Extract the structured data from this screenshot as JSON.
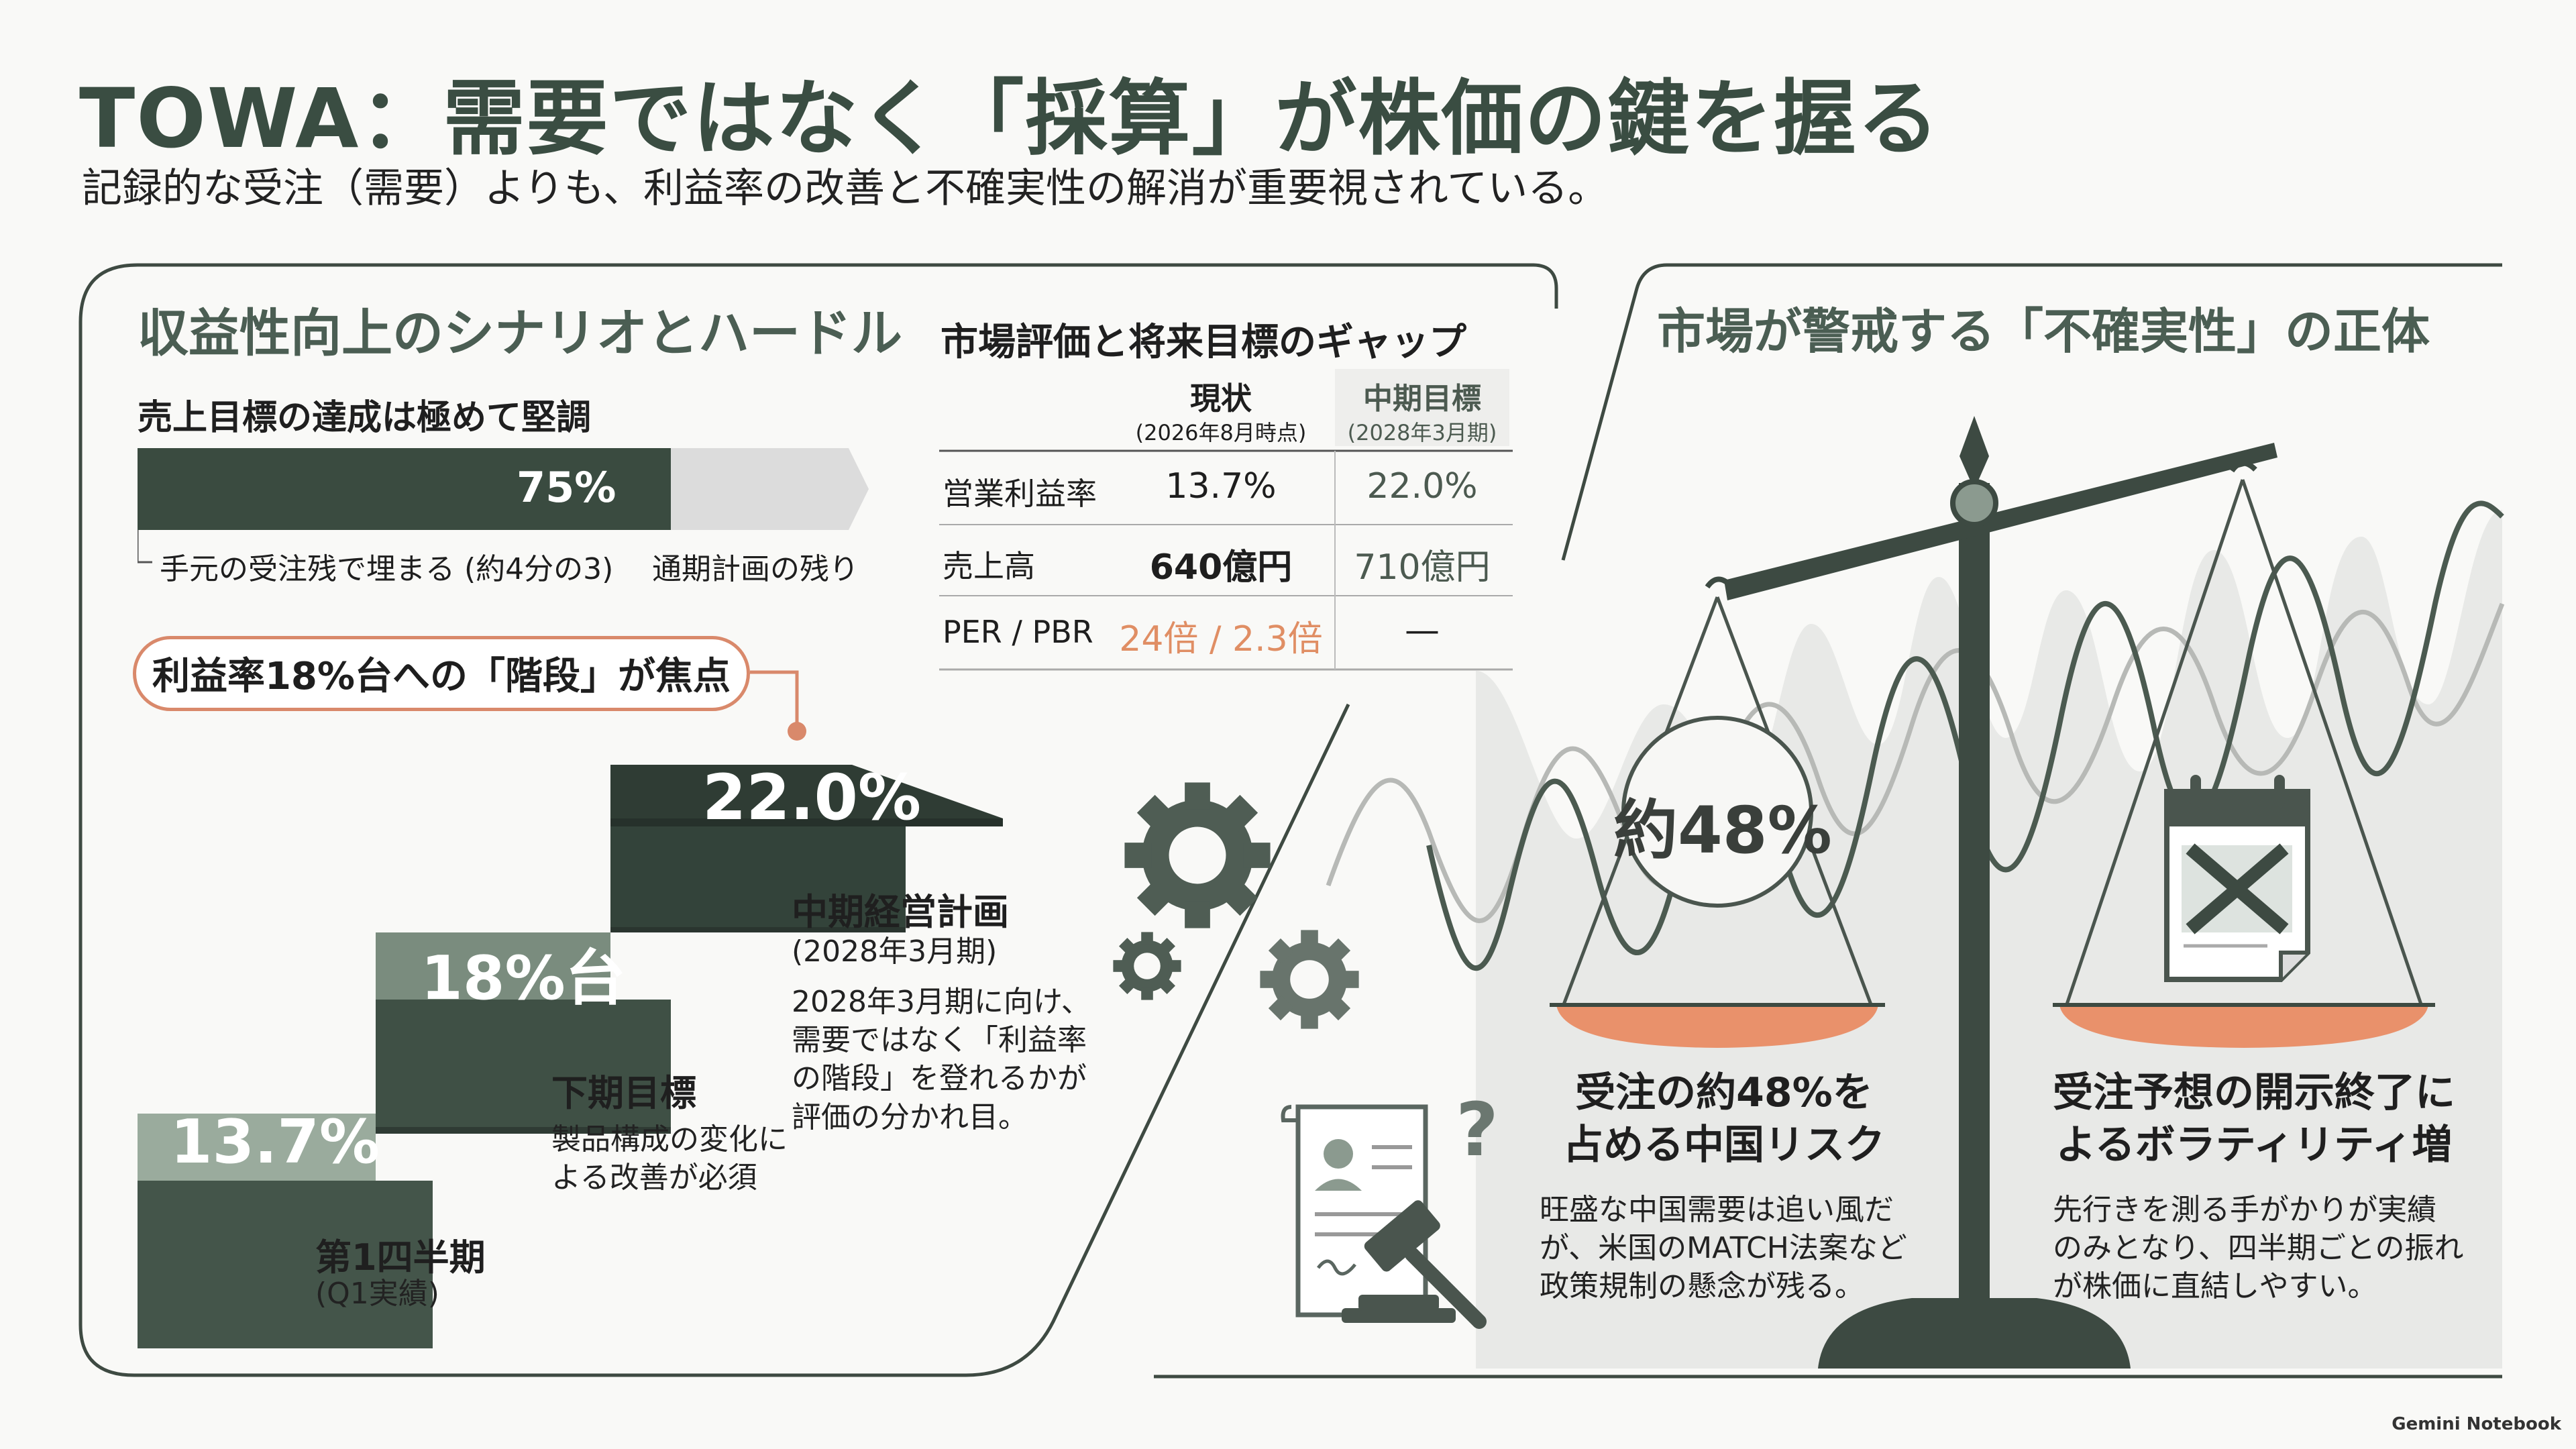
{
  "title": "TOWA：需要ではなく「採算」が株価の鍵を握る",
  "subtitle": "記録的な受注（需要）よりも、利益率の改善と不確実性の解消が重要視されている。",
  "left": {
    "section_title": "収益性向上のシナリオとハードル",
    "sales": {
      "heading": "売上目標の達成は極めて堅調",
      "progress": 0.75,
      "progress_label": "75%",
      "filled_caption": "手元の受注残で埋まる (約4分の3)",
      "remaining_caption": "通期計画の残り"
    },
    "callout": "利益率18%台への「階段」が焦点",
    "steps": [
      {
        "value": "13.7%",
        "title": "第1四半期",
        "sub": "(Q1実績)",
        "desc": ""
      },
      {
        "value": "18%台",
        "title": "下期目標",
        "sub": "",
        "desc": "製品構成の変化による改善が必須"
      },
      {
        "value": "22.0%",
        "title": "中期経営計画",
        "sub": "(2028年3月期)",
        "desc": "2028年3月期に向け、需要ではなく「利益率の階段」を登れるかが評価の分かれ目。"
      }
    ],
    "step1_desc_lines": [],
    "step2_desc_lines": [
      "製品構成の変化に",
      "よる改善が必須"
    ],
    "step3_desc_lines": [
      "2028年3月期に向け、",
      "需要ではなく「利益率",
      "の階段」を登れるかが",
      "評価の分かれ目。"
    ],
    "table": {
      "title": "市場評価と将来目標のギャップ",
      "col_current": "現状",
      "col_current_sub": "(2026年8月時点)",
      "col_target": "中期目標",
      "col_target_sub": "(2028年3月期)",
      "rows": [
        {
          "label": "営業利益率",
          "current": "13.7%",
          "target": "22.0%"
        },
        {
          "label": "売上高",
          "current": "640億円",
          "target": "710億円"
        },
        {
          "label": "PER / PBR",
          "current": "24倍 / 2.3倍",
          "target": "—"
        }
      ]
    }
  },
  "right": {
    "section_title": "市場が警戒する「不確実性」の正体",
    "left_pan_badge": "約48%",
    "risk1": {
      "title_lines": [
        "受注の約48%を",
        "占める中国リスク"
      ],
      "desc_lines": [
        "旺盛な中国需要は追い風だ",
        "が、米国のMATCH法案など",
        "政策規制の懸念が残る。"
      ]
    },
    "risk2": {
      "title_lines": [
        "受注予想の開示終了に",
        "よるボラティリティ増"
      ],
      "desc_lines": [
        "先行きを測る手がかりが実績",
        "のみとなり、四半期ごとの振れ",
        "が株価に直結しやすい。"
      ]
    }
  },
  "brand": "Gemini Notebook",
  "colors": {
    "dark_green": "#3a4b40",
    "mid_green": "#6a7d70",
    "light_green": "#93a597",
    "accent_orange": "#e08e64",
    "pan_orange": "#e9916b"
  },
  "icons": [
    "gear-icon",
    "scale-icon",
    "gavel-icon",
    "document-icon",
    "question-icon",
    "calendar-cancel-icon"
  ]
}
